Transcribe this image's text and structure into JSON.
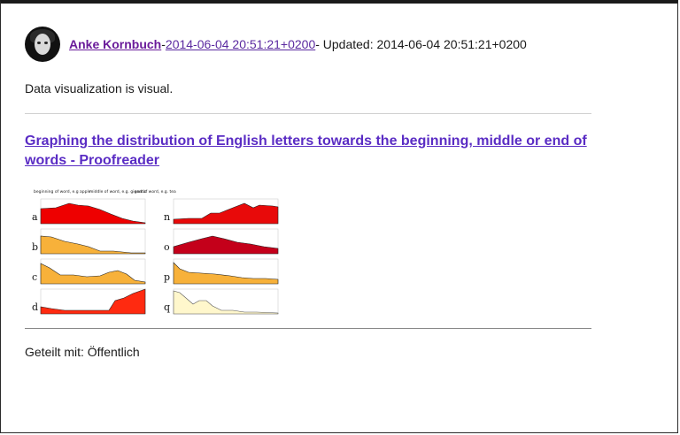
{
  "post": {
    "author": "Anke Kornbuch",
    "separator1": "-",
    "date": "2014-06-04 20:51:21+0200",
    "updated_text": "- Updated: 2014-06-04 20:51:21+0200",
    "body": "Data visualization is visual.",
    "link_title": "Graphing the distribution of English letters towards the beginning, middle or end of words - Proofreader",
    "shared_with": "Geteilt mit: Öffentlich"
  },
  "image": {
    "annotations": [
      "beginning of word, e.g apple",
      "middle of word, e.g. gigantic",
      "end of word, e.g. tea"
    ],
    "letters_left": [
      "a",
      "b",
      "c",
      "d"
    ],
    "letters_right": [
      "n",
      "o",
      "p",
      "q"
    ],
    "colors": {
      "a": "#ee0000",
      "b": "#f7b13a",
      "c": "#f7b13a",
      "d": "#ff2a10",
      "n": "#e80a0a",
      "o": "#c4001a",
      "p": "#f7b13a",
      "q": "#fff7cc"
    }
  }
}
